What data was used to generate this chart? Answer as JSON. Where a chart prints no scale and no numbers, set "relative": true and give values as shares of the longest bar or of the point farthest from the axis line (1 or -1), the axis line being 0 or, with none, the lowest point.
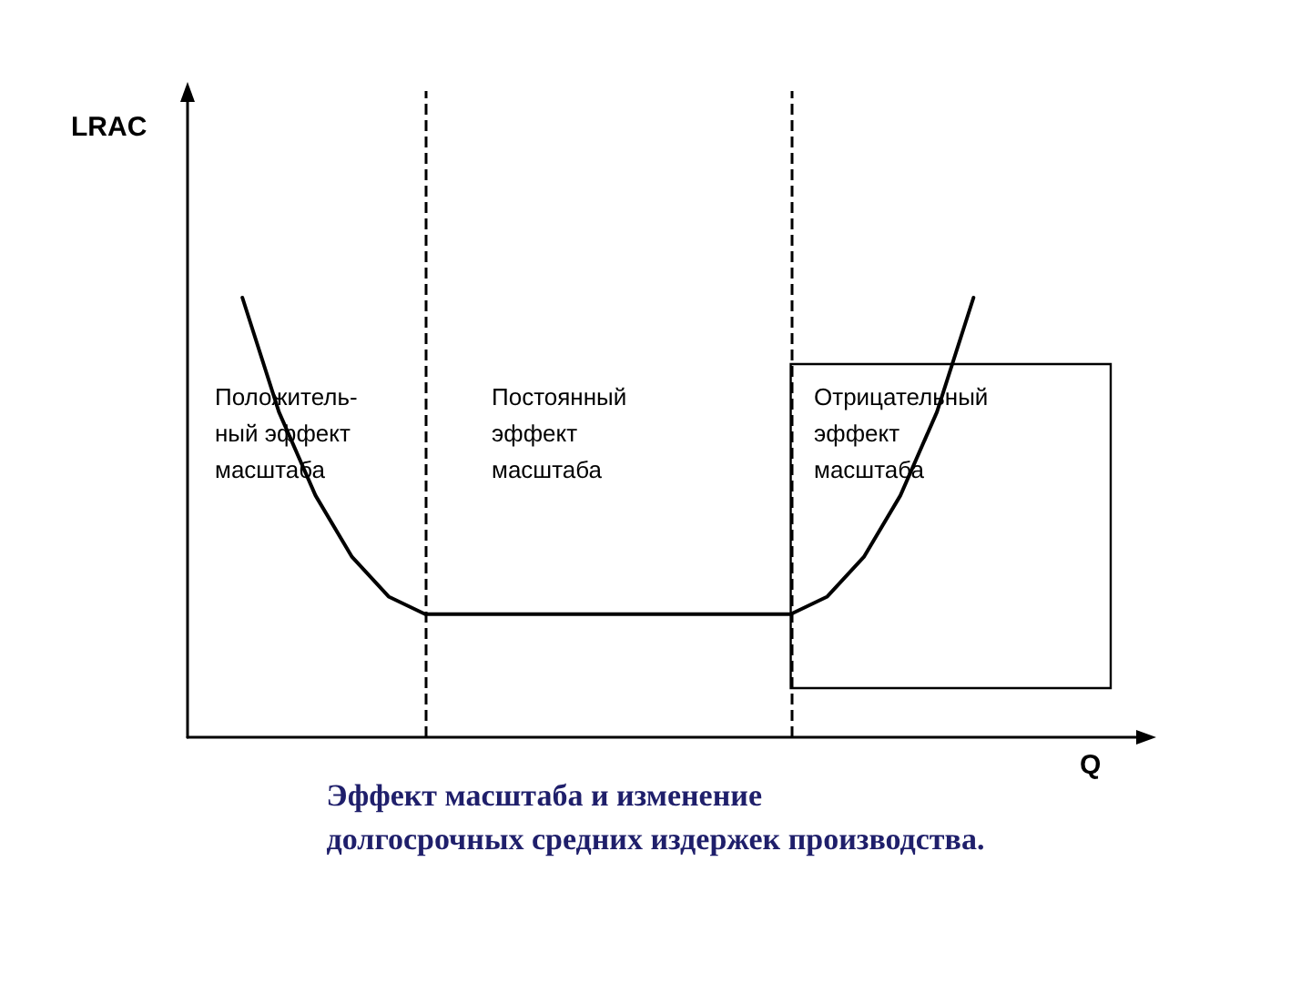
{
  "chart_data": {
    "type": "line",
    "relative": true,
    "title": "Эффект масштаба и изменение\nдолгосрочных средних издержек производства.",
    "xlabel": "Q",
    "grid": false,
    "marker": "none",
    "line_style": "solid",
    "categories": [
      null,
      null,
      null,
      null,
      null,
      null,
      null,
      null,
      null,
      null,
      null,
      null,
      null,
      null,
      null,
      null,
      null,
      null,
      null,
      null,
      null,
      null,
      null,
      null,
      null,
      null
    ],
    "series": [
      {
        "color": "#000000",
        "values": [
          null,
          1,
          0.74,
          0.55,
          0.41,
          0.32,
          0.28,
          0.28,
          0.28,
          0.28,
          0.28,
          0.28,
          0.28,
          0.28,
          0.28,
          0.28,
          0.28,
          0.32,
          0.41,
          0.55,
          0.74,
          1,
          null,
          null,
          null,
          null
        ]
      }
    ],
    "ref_lines": [
      {
        "axis": "x",
        "line_style": "dashed",
        "color": "#000000"
      },
      {
        "axis": "x",
        "line_style": "dashed",
        "color": "#000000"
      }
    ],
    "annotations": [
      "Положитель-\nный эффект\nмасштаба",
      "Постоянный\nэффект\nмасштаба",
      "Отрицательный\nэффект\nмасштаба",
      "LRAC"
    ]
  }
}
